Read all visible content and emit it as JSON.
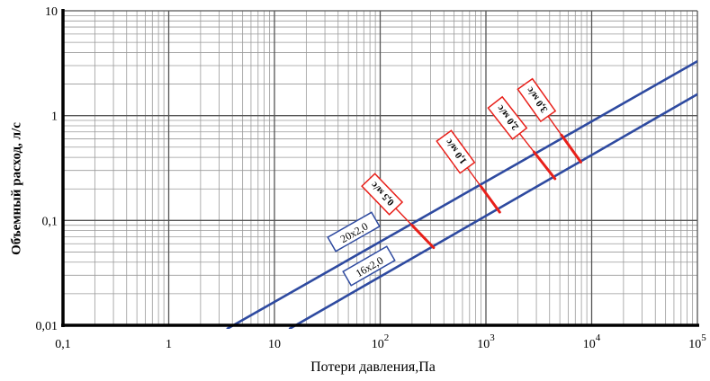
{
  "chart_data": {
    "type": "line",
    "x_scale": "log",
    "y_scale": "log",
    "xlim": [
      0.1,
      100000
    ],
    "ylim": [
      0.01,
      10
    ],
    "xlabel": "Потери давления,Па",
    "ylabel": "Объемный расход, л/с",
    "x_tick_labels": [
      "0,1",
      "1",
      "10",
      "10",
      "10",
      "10",
      "10"
    ],
    "x_tick_exponents": [
      "",
      "",
      "",
      "2",
      "3",
      "4",
      "5"
    ],
    "x_tick_values": [
      0.1,
      1,
      10,
      100,
      1000,
      10000,
      100000
    ],
    "y_tick_labels": [
      "0,01",
      "0,1",
      "1",
      "10"
    ],
    "y_tick_values": [
      0.01,
      0.1,
      1,
      10
    ],
    "grid": true,
    "series": [
      {
        "name": "20x2,0",
        "color": "#2e4aa0",
        "x": [
          3.6,
          100000
        ],
        "y": [
          0.0093,
          3.3
        ]
      },
      {
        "name": "16x2,0",
        "color": "#2e4aa0",
        "x": [
          14,
          100000
        ],
        "y": [
          0.0093,
          1.6
        ]
      }
    ],
    "velocity_markers": [
      {
        "label": "0,5 м/с",
        "x1": 200,
        "y1": 0.09,
        "x2": 320,
        "y2": 0.055
      },
      {
        "label": "1,0 м/с",
        "x1": 900,
        "y1": 0.21,
        "x2": 1350,
        "y2": 0.12
      },
      {
        "label": "2,0 м/с",
        "x1": 2850,
        "y1": 0.45,
        "x2": 4500,
        "y2": 0.25
      },
      {
        "label": "3,0 м/с",
        "x1": 5200,
        "y1": 0.65,
        "x2": 7900,
        "y2": 0.36
      }
    ],
    "marker_color": "#e8201a"
  }
}
